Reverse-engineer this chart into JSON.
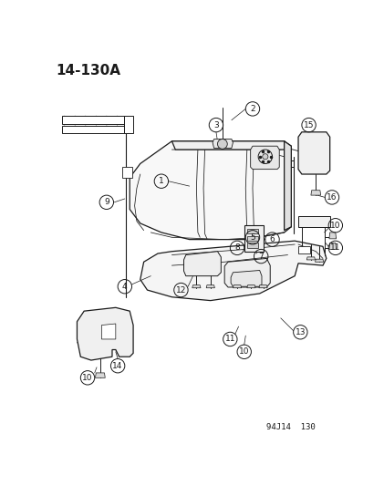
{
  "title": "14-130A",
  "footer": "94J14  130",
  "bg_color": "#ffffff",
  "line_color": "#1a1a1a",
  "title_fontsize": 11,
  "footer_fontsize": 6.5,
  "label_fontsize": 6.5,
  "circle_r": 0.022,
  "lw_main": 0.9,
  "lw_thin": 0.55,
  "lw_leader": 0.5
}
